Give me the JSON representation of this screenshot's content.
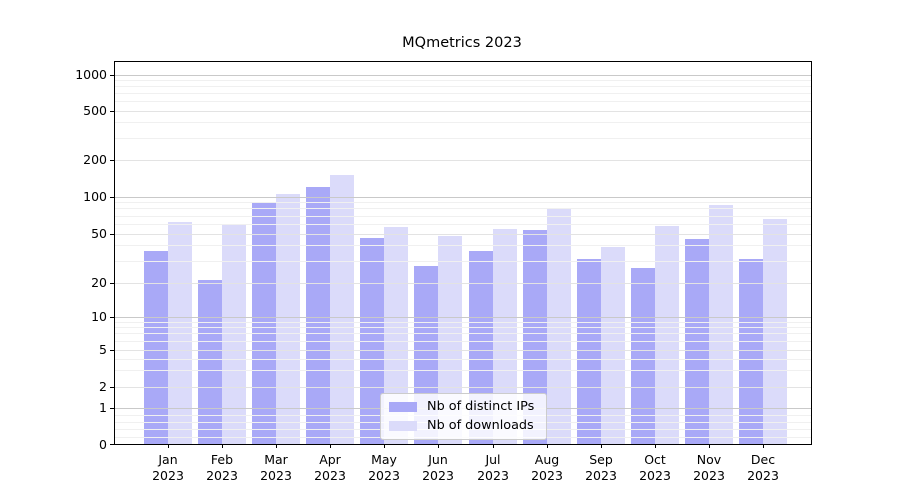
{
  "title": "MQmetrics 2023",
  "chart_data": {
    "type": "bar",
    "title": "MQmetrics 2023",
    "scale": "symlog",
    "grid": true,
    "categories": [
      "Jan",
      "Feb",
      "Mar",
      "Apr",
      "May",
      "Jun",
      "Jul",
      "Aug",
      "Sep",
      "Oct",
      "Nov",
      "Dec"
    ],
    "x_tick_year": "2023",
    "series": [
      {
        "name": "Nb of distinct IPs",
        "color": "#a9a9f7",
        "values": [
          36,
          21,
          89,
          119,
          46,
          27,
          36,
          53,
          31,
          26,
          45,
          31
        ]
      },
      {
        "name": "Nb of downloads",
        "color": "#dbdbfa",
        "values": [
          62,
          59,
          105,
          149,
          56,
          48,
          54,
          81,
          39,
          58,
          86,
          66
        ]
      }
    ],
    "y_axis": {
      "tick_values": [
        1000,
        500,
        200,
        100,
        50,
        20,
        10,
        5,
        2,
        1,
        0
      ],
      "tick_labels": [
        "1000",
        "500",
        "200",
        "100",
        "50",
        "20",
        "10",
        "5",
        "2",
        "1",
        "0"
      ],
      "minor_tick_values": [
        0.2,
        0.4,
        0.6,
        0.8,
        3,
        4,
        6,
        7,
        8,
        9,
        30,
        40,
        60,
        70,
        80,
        90,
        300,
        400,
        600,
        700,
        800,
        900
      ],
      "range_bottom": 0,
      "range_top": 1400
    },
    "legend": {
      "position": "lower center",
      "entries": [
        "Nb of distinct IPs",
        "Nb of downloads"
      ]
    }
  }
}
